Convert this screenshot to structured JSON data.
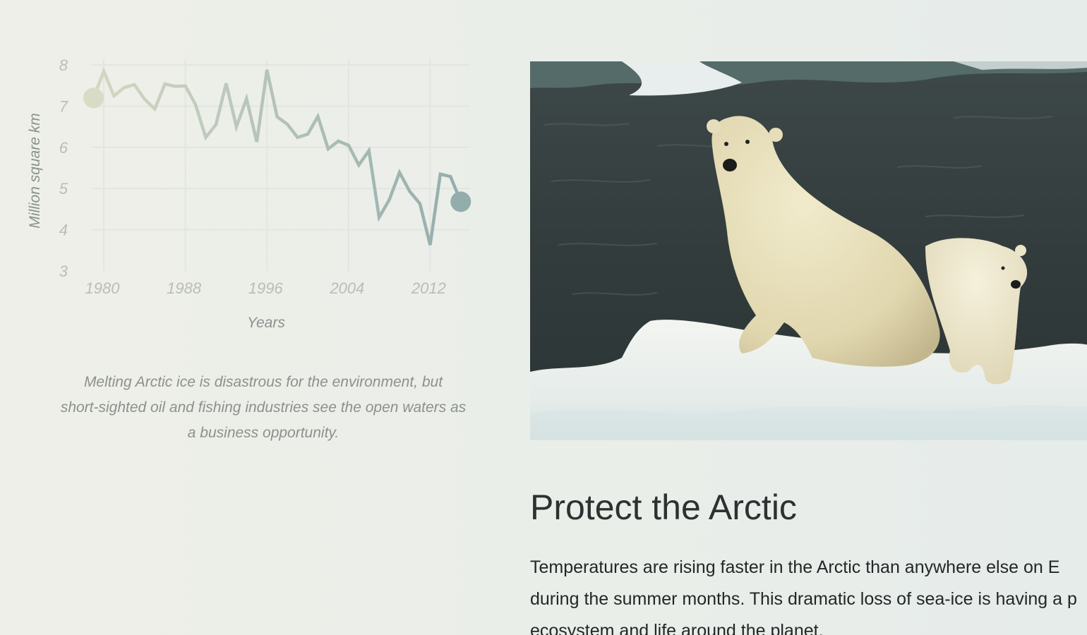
{
  "chart_data": {
    "type": "line",
    "title": "",
    "xlabel": "Years",
    "ylabel": "Million square km",
    "xlim": [
      1979,
      2015
    ],
    "ylim": [
      3,
      8
    ],
    "x_ticks": [
      "1980",
      "1988",
      "1996",
      "2004",
      "2012"
    ],
    "y_ticks": [
      "3",
      "4",
      "5",
      "6",
      "7",
      "8"
    ],
    "grid": true,
    "colors": {
      "line_start": "#d3d8c2",
      "line_end": "#93adad",
      "grid": "#e2e5e1",
      "ticks": "#b9bdb8"
    },
    "series": [
      {
        "x": [
          1979,
          1980,
          1981,
          1982,
          1983,
          1984,
          1985,
          1986,
          1987,
          1988,
          1989,
          1990,
          1991,
          1992,
          1993,
          1994,
          1995,
          1996,
          1997,
          1998,
          1999,
          2000,
          2001,
          2002,
          2003,
          2004,
          2005,
          2006,
          2007,
          2008,
          2009,
          2010,
          2011,
          2012,
          2013,
          2014,
          2015
        ],
        "y": [
          7.2,
          7.85,
          7.25,
          7.45,
          7.52,
          7.17,
          6.93,
          7.54,
          7.48,
          7.49,
          7.04,
          6.24,
          6.55,
          7.55,
          6.5,
          7.18,
          6.13,
          7.88,
          6.74,
          6.56,
          6.24,
          6.32,
          6.75,
          5.96,
          6.15,
          6.05,
          5.57,
          5.92,
          4.3,
          4.73,
          5.39,
          4.93,
          4.63,
          3.63,
          5.35,
          5.29,
          4.68
        ]
      }
    ]
  },
  "caption": {
    "line1": "Melting Arctic ice is disastrous for the environment, but",
    "line2": "short-sighted oil and fishing industries see the open waters as",
    "line3": "a business opportunity."
  },
  "article": {
    "title": "Protect the Arctic",
    "line1": "Temperatures are rising faster in the Arctic than anywhere else on E",
    "line2": "during the summer months. This dramatic loss of sea-ice is having a p",
    "line3": "ecosystem and life around the planet."
  }
}
